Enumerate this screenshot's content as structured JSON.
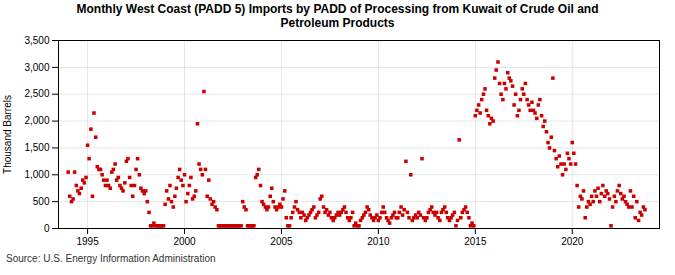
{
  "chart_data": {
    "type": "scatter",
    "title": "Monthly West Coast (PADD 5) Imports by PADD of Processing from Kuwait of Crude Oil and\nPetroleum Products",
    "ylabel": "Thousand Barrels",
    "source": "Source: U.S. Energy Information Administration",
    "color": "#CC0000",
    "marker": "square",
    "grid": true,
    "xlim": [
      1993.5,
      2024.5
    ],
    "ylim": [
      0,
      3500
    ],
    "xticks": [
      1995,
      2000,
      2005,
      2010,
      2015,
      2020
    ],
    "yticks": [
      0,
      500,
      {
        "value": 1000,
        "label": "1,000"
      },
      {
        "value": 1500,
        "label": "1,500"
      },
      {
        "value": 2000,
        "label": "2,000"
      },
      {
        "value": 2500,
        "label": "2,500"
      },
      {
        "value": 3000,
        "label": "3,000"
      },
      {
        "value": 3500,
        "label": "3,500"
      }
    ],
    "x": [
      1994.0,
      1994.08,
      1994.17,
      1994.25,
      1994.33,
      1994.42,
      1994.5,
      1994.58,
      1994.67,
      1994.75,
      1994.83,
      1994.92,
      1995.0,
      1995.08,
      1995.17,
      1995.25,
      1995.33,
      1995.42,
      1995.5,
      1995.58,
      1995.67,
      1995.75,
      1995.83,
      1995.92,
      1996.0,
      1996.08,
      1996.17,
      1996.25,
      1996.33,
      1996.42,
      1996.5,
      1996.58,
      1996.67,
      1996.75,
      1996.83,
      1996.92,
      1997.0,
      1997.08,
      1997.17,
      1997.25,
      1997.33,
      1997.42,
      1997.5,
      1997.58,
      1997.67,
      1997.75,
      1997.83,
      1997.92,
      1998.0,
      1998.08,
      1998.17,
      1998.25,
      1998.33,
      1998.42,
      1998.5,
      1998.58,
      1998.67,
      1998.75,
      1998.83,
      1998.92,
      1999.0,
      1999.08,
      1999.17,
      1999.25,
      1999.33,
      1999.42,
      1999.5,
      1999.58,
      1999.67,
      1999.75,
      1999.83,
      1999.92,
      2000.0,
      2000.08,
      2000.17,
      2000.25,
      2000.33,
      2000.42,
      2000.5,
      2000.58,
      2000.67,
      2000.75,
      2000.83,
      2000.92,
      2001.0,
      2001.08,
      2001.17,
      2001.25,
      2001.33,
      2001.42,
      2001.5,
      2001.58,
      2001.67,
      2001.75,
      2001.83,
      2001.92,
      2002.0,
      2002.08,
      2002.17,
      2002.25,
      2002.33,
      2002.42,
      2002.5,
      2002.58,
      2002.67,
      2002.75,
      2002.83,
      2002.92,
      2003.0,
      2003.08,
      2003.17,
      2003.25,
      2003.33,
      2003.42,
      2003.5,
      2003.58,
      2003.67,
      2003.75,
      2003.83,
      2003.92,
      2004.0,
      2004.08,
      2004.17,
      2004.25,
      2004.33,
      2004.42,
      2004.5,
      2004.58,
      2004.67,
      2004.75,
      2004.83,
      2004.92,
      2005.0,
      2005.08,
      2005.17,
      2005.25,
      2005.33,
      2005.42,
      2005.5,
      2005.58,
      2005.67,
      2005.75,
      2005.83,
      2005.92,
      2006.0,
      2006.08,
      2006.17,
      2006.25,
      2006.33,
      2006.42,
      2006.5,
      2006.58,
      2006.67,
      2006.75,
      2006.83,
      2006.92,
      2007.0,
      2007.08,
      2007.17,
      2007.25,
      2007.33,
      2007.42,
      2007.5,
      2007.58,
      2007.67,
      2007.75,
      2007.83,
      2007.92,
      2008.0,
      2008.08,
      2008.17,
      2008.25,
      2008.33,
      2008.42,
      2008.5,
      2008.58,
      2008.67,
      2008.75,
      2008.83,
      2008.92,
      2009.0,
      2009.08,
      2009.17,
      2009.25,
      2009.33,
      2009.42,
      2009.5,
      2009.58,
      2009.67,
      2009.75,
      2009.83,
      2009.92,
      2010.0,
      2010.08,
      2010.17,
      2010.25,
      2010.33,
      2010.42,
      2010.5,
      2010.58,
      2010.67,
      2010.75,
      2010.83,
      2010.92,
      2011.0,
      2011.08,
      2011.17,
      2011.25,
      2011.33,
      2011.42,
      2011.5,
      2011.58,
      2011.67,
      2011.75,
      2011.83,
      2011.92,
      2012.0,
      2012.08,
      2012.17,
      2012.25,
      2012.33,
      2012.42,
      2012.5,
      2012.58,
      2012.67,
      2012.75,
      2012.83,
      2012.92,
      2013.0,
      2013.08,
      2013.17,
      2013.25,
      2013.33,
      2013.42,
      2013.5,
      2013.58,
      2013.67,
      2013.75,
      2013.83,
      2013.92,
      2014.0,
      2014.08,
      2014.17,
      2014.25,
      2014.33,
      2014.42,
      2014.5,
      2014.58,
      2014.67,
      2014.75,
      2014.83,
      2014.92,
      2015.0,
      2015.08,
      2015.17,
      2015.25,
      2015.33,
      2015.42,
      2015.5,
      2015.58,
      2015.67,
      2015.75,
      2015.83,
      2015.92,
      2016.0,
      2016.08,
      2016.17,
      2016.25,
      2016.33,
      2016.42,
      2016.5,
      2016.58,
      2016.67,
      2016.75,
      2016.83,
      2016.92,
      2017.0,
      2017.08,
      2017.17,
      2017.25,
      2017.33,
      2017.42,
      2017.5,
      2017.58,
      2017.67,
      2017.75,
      2017.83,
      2017.92,
      2018.0,
      2018.08,
      2018.17,
      2018.25,
      2018.33,
      2018.42,
      2018.5,
      2018.58,
      2018.67,
      2018.75,
      2018.83,
      2018.92,
      2019.0,
      2019.08,
      2019.17,
      2019.25,
      2019.33,
      2019.42,
      2019.5,
      2019.58,
      2019.67,
      2019.75,
      2019.83,
      2019.92,
      2020.0,
      2020.08,
      2020.17,
      2020.25,
      2020.33,
      2020.42,
      2020.5,
      2020.58,
      2020.67,
      2020.75,
      2020.83,
      2020.92,
      2021.0,
      2021.08,
      2021.17,
      2021.25,
      2021.33,
      2021.42,
      2021.5,
      2021.58,
      2021.67,
      2021.75,
      2021.83,
      2021.92,
      2022.0,
      2022.08,
      2022.17,
      2022.25,
      2022.33,
      2022.42,
      2022.5,
      2022.58,
      2022.67,
      2022.75,
      2022.83,
      2022.92,
      2023.0,
      2023.08,
      2023.17,
      2023.25,
      2023.33,
      2023.42,
      2023.5,
      2023.58,
      2023.67,
      2023.75
    ],
    "values": [
      1050,
      600,
      500,
      550,
      1050,
      800,
      700,
      650,
      750,
      900,
      850,
      950,
      1550,
      1300,
      1850,
      600,
      2150,
      1700,
      1150,
      1100,
      1100,
      1000,
      900,
      800,
      900,
      800,
      750,
      1050,
      1100,
      1200,
      900,
      950,
      800,
      750,
      700,
      850,
      1250,
      1300,
      950,
      800,
      600,
      800,
      1100,
      1300,
      1000,
      750,
      700,
      650,
      700,
      500,
      300,
      50,
      50,
      100,
      50,
      50,
      50,
      50,
      50,
      50,
      450,
      700,
      550,
      800,
      500,
      400,
      600,
      750,
      950,
      1100,
      900,
      800,
      1000,
      500,
      650,
      800,
      950,
      550,
      600,
      700,
      1950,
      1200,
      1100,
      1000,
      2550,
      1100,
      600,
      900,
      550,
      450,
      500,
      400,
      350,
      50,
      50,
      50,
      50,
      50,
      50,
      50,
      50,
      50,
      50,
      50,
      50,
      50,
      50,
      50,
      500,
      400,
      350,
      50,
      50,
      50,
      50,
      50,
      950,
      1000,
      1100,
      800,
      500,
      450,
      400,
      350,
      400,
      600,
      750,
      500,
      400,
      350,
      400,
      450,
      400,
      550,
      700,
      200,
      50,
      50,
      200,
      300,
      400,
      500,
      350,
      300,
      200,
      300,
      250,
      150,
      200,
      250,
      300,
      350,
      400,
      200,
      250,
      300,
      550,
      600,
      400,
      300,
      350,
      250,
      300,
      200,
      150,
      200,
      250,
      300,
      250,
      300,
      350,
      400,
      300,
      200,
      150,
      200,
      300,
      50,
      100,
      50,
      50,
      150,
      200,
      250,
      300,
      400,
      350,
      250,
      200,
      150,
      200,
      250,
      150,
      200,
      300,
      400,
      300,
      200,
      150,
      100,
      200,
      250,
      300,
      200,
      200,
      300,
      400,
      250,
      350,
      1250,
      300,
      200,
      1000,
      150,
      200,
      250,
      200,
      300,
      250,
      1300,
      200,
      150,
      200,
      300,
      350,
      400,
      300,
      250,
      300,
      200,
      150,
      300,
      350,
      400,
      300,
      200,
      150,
      200,
      250,
      300,
      50,
      150,
      1650,
      200,
      300,
      350,
      400,
      300,
      200,
      50,
      100,
      50,
      2100,
      2200,
      2300,
      2150,
      2400,
      2500,
      2600,
      2200,
      2100,
      1950,
      2050,
      2000,
      2800,
      2950,
      3100,
      2700,
      2500,
      2400,
      2700,
      2600,
      2900,
      2800,
      2750,
      2650,
      2300,
      2500,
      2100,
      2200,
      2400,
      2600,
      2500,
      2700,
      2400,
      2300,
      2200,
      2350,
      2200,
      2150,
      2050,
      2300,
      2400,
      2100,
      1900,
      2000,
      1800,
      1600,
      1500,
      1700,
      2800,
      1450,
      1300,
      1150,
      1350,
      1200,
      1000,
      1200,
      1100,
      1400,
      1300,
      1200,
      1600,
      1400,
      1200,
      800,
      400,
      600,
      550,
      700,
      200,
      400,
      500,
      450,
      600,
      500,
      700,
      600,
      750,
      500,
      650,
      800,
      600,
      700,
      650,
      550,
      50,
      400,
      600,
      500,
      700,
      800,
      650,
      550,
      600,
      500,
      450,
      400,
      700,
      400,
      600,
      200,
      500,
      150,
      300,
      250,
      400,
      350
    ]
  }
}
